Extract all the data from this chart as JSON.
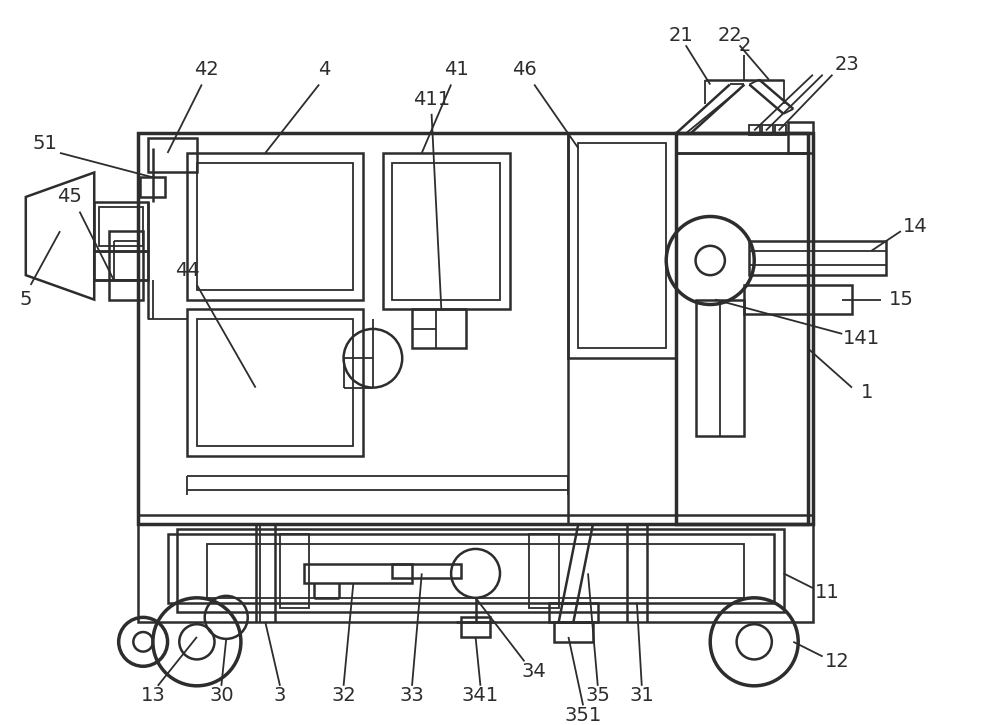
{
  "bg_color": "#ffffff",
  "lc": "#2d2d2d",
  "lw_thin": 1.3,
  "lw_med": 1.8,
  "lw_thick": 2.5,
  "fs": 13,
  "fig_w": 10.0,
  "fig_h": 7.25
}
